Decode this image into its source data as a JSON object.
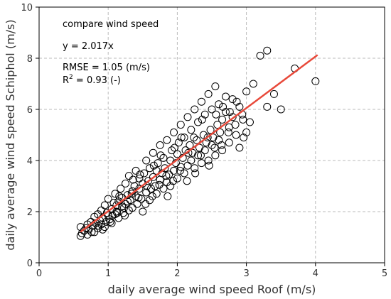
{
  "chart_data": {
    "type": "scatter",
    "xlabel": "daily average wind speed Roof (m/s)",
    "ylabel": "daily average wind speed Schiphol (m/s)",
    "xlim": [
      0,
      5
    ],
    "ylim": [
      0,
      10
    ],
    "xticks": [
      "0",
      "1",
      "2",
      "3",
      "4",
      "5"
    ],
    "yticks": [
      "0",
      "2",
      "4",
      "6",
      "8",
      "10"
    ],
    "grid": true,
    "annotations": {
      "title": "compare wind speed",
      "equation": "y = 2.017x",
      "rmse": "RMSE = 1.05 (m/s)",
      "r2_prefix": "R",
      "r2_sup": "2",
      "r2_suffix": " = 0.93 (-)"
    },
    "fit_line": {
      "slope": 2.017,
      "x_range": [
        0.6,
        4.03
      ],
      "color": "#e8493a"
    },
    "points": [
      [
        0.6,
        1.05
      ],
      [
        0.6,
        1.4
      ],
      [
        0.65,
        1.25
      ],
      [
        0.7,
        1.1
      ],
      [
        0.7,
        1.5
      ],
      [
        0.72,
        1.3
      ],
      [
        0.75,
        1.6
      ],
      [
        0.78,
        1.45
      ],
      [
        0.8,
        1.8
      ],
      [
        0.8,
        1.2
      ],
      [
        0.82,
        1.55
      ],
      [
        0.85,
        1.35
      ],
      [
        0.85,
        1.9
      ],
      [
        0.88,
        1.65
      ],
      [
        0.9,
        1.5
      ],
      [
        0.9,
        2.05
      ],
      [
        0.92,
        1.75
      ],
      [
        0.95,
        1.4
      ],
      [
        0.95,
        2.25
      ],
      [
        0.97,
        1.6
      ],
      [
        1.0,
        1.85
      ],
      [
        1.0,
        2.5
      ],
      [
        1.02,
        1.7
      ],
      [
        1.05,
        2.1
      ],
      [
        1.05,
        1.55
      ],
      [
        1.08,
        2.35
      ],
      [
        1.1,
        1.9
      ],
      [
        1.1,
        2.7
      ],
      [
        1.12,
        2.0
      ],
      [
        1.15,
        2.4
      ],
      [
        1.15,
        1.75
      ],
      [
        1.18,
        2.9
      ],
      [
        1.2,
        2.2
      ],
      [
        1.2,
        2.55
      ],
      [
        1.22,
        1.95
      ],
      [
        1.25,
        3.1
      ],
      [
        1.25,
        2.3
      ],
      [
        1.28,
        2.65
      ],
      [
        1.3,
        2.05
      ],
      [
        1.3,
        3.4
      ],
      [
        1.32,
        2.45
      ],
      [
        1.35,
        2.8
      ],
      [
        1.35,
        2.15
      ],
      [
        1.38,
        3.0
      ],
      [
        1.4,
        2.6
      ],
      [
        1.4,
        3.6
      ],
      [
        1.42,
        2.3
      ],
      [
        1.45,
        2.9
      ],
      [
        1.45,
        3.3
      ],
      [
        1.48,
        2.5
      ],
      [
        1.5,
        3.1
      ],
      [
        1.5,
        2.0
      ],
      [
        1.52,
        3.5
      ],
      [
        1.55,
        2.75
      ],
      [
        1.55,
        4.0
      ],
      [
        1.58,
        3.2
      ],
      [
        1.6,
        2.45
      ],
      [
        1.6,
        3.7
      ],
      [
        1.62,
        2.9
      ],
      [
        1.65,
        3.35
      ],
      [
        1.65,
        4.3
      ],
      [
        1.68,
        3.0
      ],
      [
        1.7,
        3.6
      ],
      [
        1.7,
        2.7
      ],
      [
        1.72,
        3.9
      ],
      [
        1.75,
        3.25
      ],
      [
        1.75,
        4.6
      ],
      [
        1.78,
        3.5
      ],
      [
        1.8,
        2.9
      ],
      [
        1.8,
        4.1
      ],
      [
        1.82,
        3.7
      ],
      [
        1.85,
        3.15
      ],
      [
        1.85,
        4.8
      ],
      [
        1.88,
        3.45
      ],
      [
        1.9,
        4.0
      ],
      [
        1.9,
        3.0
      ],
      [
        1.92,
        4.4
      ],
      [
        1.95,
        3.6
      ],
      [
        1.95,
        5.1
      ],
      [
        1.98,
        3.9
      ],
      [
        2.0,
        4.25
      ],
      [
        2.0,
        3.3
      ],
      [
        2.02,
        4.7
      ],
      [
        2.05,
        3.75
      ],
      [
        2.05,
        5.4
      ],
      [
        2.08,
        4.1
      ],
      [
        2.1,
        3.5
      ],
      [
        2.1,
        4.9
      ],
      [
        2.12,
        4.4
      ],
      [
        2.15,
        3.8
      ],
      [
        2.15,
        5.7
      ],
      [
        2.18,
        4.6
      ],
      [
        2.2,
        4.0
      ],
      [
        2.2,
        5.2
      ],
      [
        2.22,
        4.3
      ],
      [
        2.25,
        3.7
      ],
      [
        2.25,
        6.0
      ],
      [
        2.28,
        4.8
      ],
      [
        2.3,
        4.2
      ],
      [
        2.3,
        5.5
      ],
      [
        2.32,
        4.5
      ],
      [
        2.35,
        3.9
      ],
      [
        2.35,
        6.3
      ],
      [
        2.38,
        5.0
      ],
      [
        2.4,
        4.4
      ],
      [
        2.4,
        5.8
      ],
      [
        2.42,
        4.7
      ],
      [
        2.45,
        4.0
      ],
      [
        2.45,
        6.6
      ],
      [
        2.48,
        5.2
      ],
      [
        2.5,
        4.6
      ],
      [
        2.5,
        6.0
      ],
      [
        2.52,
        4.9
      ],
      [
        2.55,
        4.2
      ],
      [
        2.55,
        6.9
      ],
      [
        2.58,
        5.4
      ],
      [
        2.6,
        4.8
      ],
      [
        2.6,
        6.2
      ],
      [
        2.62,
        5.1
      ],
      [
        2.65,
        5.6
      ],
      [
        2.65,
        4.4
      ],
      [
        2.7,
        5.9
      ],
      [
        2.7,
        6.5
      ],
      [
        2.75,
        5.3
      ],
      [
        2.75,
        4.7
      ],
      [
        2.8,
        6.4
      ],
      [
        2.8,
        5.7
      ],
      [
        2.85,
        5.0
      ],
      [
        2.9,
        6.1
      ],
      [
        2.9,
        4.5
      ],
      [
        2.95,
        5.6
      ],
      [
        3.0,
        5.1
      ],
      [
        3.0,
        6.7
      ],
      [
        3.1,
        7.0
      ],
      [
        3.2,
        8.1
      ],
      [
        3.3,
        8.3
      ],
      [
        3.3,
        6.1
      ],
      [
        3.4,
        6.6
      ],
      [
        3.5,
        6.0
      ],
      [
        3.7,
        7.6
      ],
      [
        4.0,
        7.1
      ],
      [
        0.62,
        1.15
      ],
      [
        0.68,
        1.35
      ],
      [
        0.76,
        1.2
      ],
      [
        0.86,
        1.45
      ],
      [
        0.92,
        1.3
      ],
      [
        0.98,
        1.95
      ],
      [
        1.06,
        1.85
      ],
      [
        1.12,
        2.25
      ],
      [
        1.16,
        2.6
      ],
      [
        1.24,
        1.85
      ],
      [
        1.28,
        2.4
      ],
      [
        1.34,
        2.7
      ],
      [
        1.36,
        3.25
      ],
      [
        1.44,
        2.55
      ],
      [
        1.46,
        3.45
      ],
      [
        1.54,
        2.3
      ],
      [
        1.56,
        3.0
      ],
      [
        1.64,
        2.6
      ],
      [
        1.66,
        3.8
      ],
      [
        1.74,
        3.05
      ],
      [
        1.76,
        4.2
      ],
      [
        1.84,
        3.4
      ],
      [
        1.86,
        2.6
      ],
      [
        1.94,
        3.2
      ],
      [
        1.96,
        4.5
      ],
      [
        2.04,
        3.6
      ],
      [
        2.06,
        4.9
      ],
      [
        2.14,
        3.2
      ],
      [
        2.16,
        4.3
      ],
      [
        2.24,
        4.9
      ],
      [
        2.26,
        3.5
      ],
      [
        2.34,
        4.2
      ],
      [
        2.36,
        5.6
      ],
      [
        2.44,
        4.9
      ],
      [
        2.46,
        3.8
      ],
      [
        2.54,
        4.5
      ],
      [
        2.56,
        5.8
      ],
      [
        2.64,
        4.6
      ],
      [
        2.66,
        6.1
      ],
      [
        2.74,
        5.1
      ],
      [
        2.76,
        5.9
      ],
      [
        2.84,
        5.4
      ],
      [
        2.86,
        6.3
      ],
      [
        2.94,
        5.8
      ],
      [
        2.96,
        4.9
      ],
      [
        3.05,
        5.5
      ],
      [
        1.03,
        1.6
      ],
      [
        1.13,
        1.95
      ],
      [
        1.23,
        2.15
      ]
    ]
  }
}
